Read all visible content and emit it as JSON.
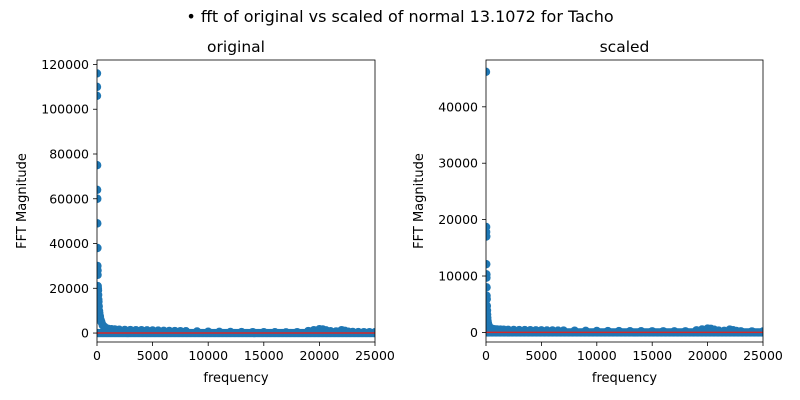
{
  "figure": {
    "suptitle": "• fft of original vs scaled of normal 13.1072 for Tacho"
  },
  "colors": {
    "marker": "#1f77b4",
    "hline": "#d62728",
    "axes": "#000000"
  },
  "chart_data": [
    {
      "type": "scatter",
      "title": "original",
      "xlabel": "frequency",
      "ylabel": "FFT Magnitude",
      "xlim": [
        0,
        25000
      ],
      "ylim": [
        -4000,
        122000
      ],
      "xticks": [
        0,
        5000,
        10000,
        15000,
        20000,
        25000
      ],
      "yticks": [
        0,
        20000,
        40000,
        60000,
        80000,
        100000,
        120000
      ],
      "hline": 0,
      "grid": false,
      "series": [
        {
          "x": [
            0,
            0,
            0,
            13,
            13,
            26,
            26,
            39,
            39,
            52,
            52,
            65,
            78,
            91,
            104,
            117,
            130,
            156,
            182,
            208,
            260,
            312,
            390,
            520,
            650,
            800,
            1000,
            1300,
            1600,
            2000,
            2500,
            3000,
            3500,
            4000,
            4500,
            5000,
            5500,
            6000,
            6500,
            7000,
            7500,
            8000,
            9000,
            10000,
            11000,
            12000,
            13000,
            14000,
            15000,
            16000,
            17000,
            18000,
            19000,
            19500,
            20000,
            20300,
            20600,
            21000,
            21500,
            22000,
            22300,
            22600,
            23000,
            23500,
            24000,
            24500,
            25000
          ],
          "y": [
            116000,
            110000,
            106000,
            75000,
            64000,
            60000,
            49000,
            38000,
            30000,
            28000,
            26000,
            21000,
            20000,
            19000,
            17000,
            15000,
            14000,
            12000,
            10000,
            9000,
            7500,
            6000,
            5000,
            3500,
            2800,
            2200,
            1900,
            1700,
            1600,
            1500,
            1400,
            1350,
            1300,
            1250,
            1200,
            1150,
            1100,
            1000,
            950,
            900,
            850,
            800,
            700,
            600,
            550,
            500,
            450,
            400,
            380,
            360,
            340,
            400,
            900,
            1300,
            1700,
            1600,
            1200,
            800,
            700,
            1300,
            1000,
            600,
            500,
            450,
            400,
            380,
            350
          ]
        }
      ]
    },
    {
      "type": "scatter",
      "title": "scaled",
      "xlabel": "frequency",
      "ylabel": "FFT Magnitude",
      "xlim": [
        0,
        25000
      ],
      "ylim": [
        -1700,
        48300
      ],
      "xticks": [
        0,
        5000,
        10000,
        15000,
        20000,
        25000
      ],
      "yticks": [
        0,
        10000,
        20000,
        30000,
        40000
      ],
      "hline": 0,
      "grid": false,
      "series": [
        {
          "x": [
            0,
            13,
            13,
            26,
            26,
            39,
            39,
            52,
            52,
            65,
            78,
            91,
            104,
            117,
            130,
            156,
            182,
            208,
            260,
            312,
            390,
            520,
            650,
            800,
            1000,
            1300,
            1600,
            2000,
            2500,
            3000,
            3500,
            4000,
            4500,
            5000,
            5500,
            6000,
            6500,
            7000,
            8000,
            9000,
            10000,
            11000,
            12000,
            13000,
            14000,
            15000,
            16000,
            17000,
            18000,
            19000,
            19500,
            20000,
            20300,
            20600,
            21000,
            21500,
            22000,
            22300,
            22600,
            23000,
            24000,
            25000
          ],
          "y": [
            46200,
            18700,
            17800,
            17000,
            12100,
            10300,
            9700,
            8000,
            6500,
            5900,
            4700,
            3900,
            3200,
            2600,
            2100,
            1800,
            1500,
            1300,
            1100,
            950,
            800,
            650,
            580,
            540,
            520,
            500,
            480,
            460,
            440,
            420,
            410,
            400,
            380,
            370,
            350,
            340,
            330,
            320,
            300,
            280,
            260,
            240,
            230,
            220,
            210,
            200,
            200,
            190,
            200,
            380,
            520,
            680,
            640,
            480,
            320,
            280,
            500,
            400,
            250,
            200,
            180,
            170
          ]
        }
      ]
    }
  ]
}
